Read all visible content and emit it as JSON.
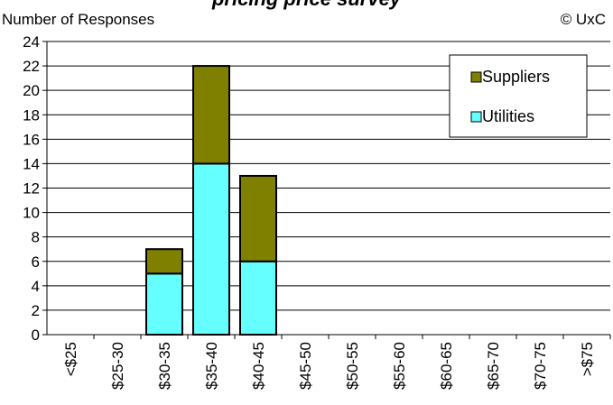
{
  "header": {
    "title_fragment": "pricing price survey",
    "ylabel": "Number of Responses",
    "copyright": "© UxC"
  },
  "colors": {
    "utilities": "#66ffff",
    "suppliers": "#808000",
    "border": "#000000"
  },
  "chart_data": {
    "type": "bar",
    "stacked": true,
    "categories": [
      "<$25",
      "$25-30",
      "$30-35",
      "$35-40",
      "$40-45",
      "$45-50",
      "$50-55",
      "$55-60",
      "$60-65",
      "$65-70",
      "$70-75",
      ">$75"
    ],
    "series": [
      {
        "name": "Utilities",
        "values": [
          0,
          0,
          5,
          14,
          6,
          0,
          0,
          0,
          0,
          0,
          0,
          0
        ]
      },
      {
        "name": "Suppliers",
        "values": [
          0,
          0,
          2,
          8,
          7,
          0,
          0,
          0,
          0,
          0,
          0,
          0
        ]
      }
    ],
    "ylabel": "Number of Responses",
    "ylim": [
      0,
      24
    ],
    "yticks": [
      0,
      2,
      4,
      6,
      8,
      10,
      12,
      14,
      16,
      18,
      20,
      22,
      24
    ],
    "grid": true,
    "legend_position": "top-right",
    "legend_order": [
      "Suppliers",
      "Utilities"
    ]
  }
}
